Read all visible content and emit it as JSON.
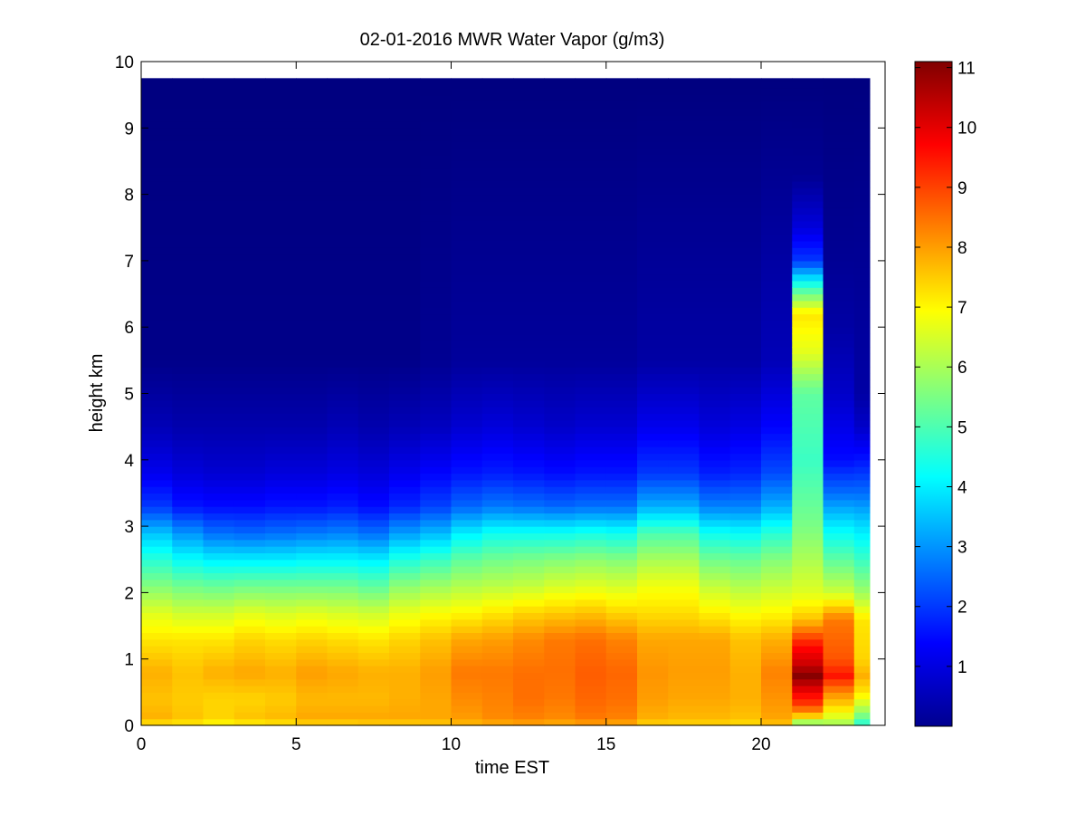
{
  "chart_data": {
    "type": "heatmap",
    "title": "02-01-2016 MWR Water Vapor (g/m3)",
    "xlabel": "time EST",
    "ylabel": "height km",
    "xlim": [
      0,
      24
    ],
    "ylim": [
      0,
      10
    ],
    "x_ticks": [
      "0",
      "5",
      "10",
      "15",
      "20"
    ],
    "y_ticks": [
      "0",
      "1",
      "2",
      "3",
      "4",
      "5",
      "6",
      "7",
      "8",
      "9",
      "10"
    ],
    "grid": false,
    "colormap": "jet",
    "colorbar": {
      "range": [
        0,
        11.1
      ],
      "ticks": [
        "1",
        "2",
        "3",
        "4",
        "5",
        "6",
        "7",
        "8",
        "9",
        "10",
        "11"
      ]
    },
    "x_centers": [
      0.5,
      1.5,
      2.5,
      3.5,
      4.5,
      5.5,
      6.5,
      7.5,
      8.5,
      9.5,
      10.5,
      11.5,
      12.5,
      13.5,
      14.5,
      15.5,
      16.5,
      17.5,
      18.5,
      19.5,
      20.5,
      21.5,
      22.5,
      23.5
    ],
    "z_profiles": [
      {
        "h": [
          0,
          0.1,
          0.4,
          0.8,
          1.3,
          1.7,
          2.1,
          2.5,
          2.9,
          3.3,
          3.8,
          4.5,
          5.5,
          9.75
        ],
        "v": [
          7.0,
          7.8,
          7.6,
          7.8,
          7.2,
          6.6,
          5.6,
          4.6,
          3.5,
          2.0,
          1.2,
          0.6,
          0.1,
          0.0
        ]
      },
      {
        "h": [
          0,
          0.1,
          0.4,
          0.8,
          1.3,
          1.7,
          2.1,
          2.5,
          2.9,
          3.3,
          3.8,
          4.5,
          5.5,
          9.75
        ],
        "v": [
          7.0,
          7.6,
          7.5,
          7.6,
          7.2,
          6.4,
          5.4,
          4.2,
          3.0,
          1.6,
          1.0,
          0.5,
          0.1,
          0.0
        ]
      },
      {
        "h": [
          0,
          0.1,
          0.4,
          0.8,
          1.3,
          1.7,
          2.1,
          2.5,
          2.9,
          3.3,
          3.8,
          4.5,
          5.5,
          9.75
        ],
        "v": [
          6.8,
          7.4,
          7.4,
          7.8,
          7.2,
          6.4,
          5.3,
          4.0,
          2.6,
          1.5,
          0.9,
          0.5,
          0.1,
          0.0
        ]
      },
      {
        "h": [
          0,
          0.1,
          0.4,
          0.8,
          1.3,
          1.7,
          2.1,
          2.5,
          2.9,
          3.3,
          3.8,
          4.5,
          5.5,
          9.75
        ],
        "v": [
          6.9,
          7.6,
          7.4,
          7.9,
          7.4,
          6.6,
          5.4,
          4.0,
          2.5,
          1.5,
          0.9,
          0.5,
          0.1,
          0.0
        ]
      },
      {
        "h": [
          0,
          0.1,
          0.4,
          0.8,
          1.3,
          1.7,
          2.1,
          2.5,
          2.9,
          3.3,
          3.8,
          4.5,
          5.5,
          9.75
        ],
        "v": [
          7.0,
          7.7,
          7.5,
          7.8,
          7.3,
          6.5,
          5.4,
          4.0,
          2.6,
          1.6,
          1.0,
          0.5,
          0.1,
          0.0
        ]
      },
      {
        "h": [
          0,
          0.1,
          0.4,
          0.8,
          1.3,
          1.7,
          2.1,
          2.5,
          2.9,
          3.3,
          3.8,
          4.5,
          5.5,
          9.75
        ],
        "v": [
          7.2,
          7.9,
          7.7,
          8.0,
          7.4,
          6.6,
          5.4,
          4.1,
          2.7,
          1.6,
          1.0,
          0.5,
          0.1,
          0.0
        ]
      },
      {
        "h": [
          0,
          0.1,
          0.4,
          0.8,
          1.3,
          1.7,
          2.1,
          2.5,
          2.9,
          3.3,
          3.8,
          4.5,
          5.5,
          9.75
        ],
        "v": [
          7.2,
          7.9,
          7.7,
          7.9,
          7.3,
          6.5,
          5.4,
          4.1,
          2.8,
          1.7,
          1.1,
          0.6,
          0.1,
          0.0
        ]
      },
      {
        "h": [
          0,
          0.1,
          0.4,
          0.8,
          1.3,
          1.7,
          2.1,
          2.5,
          2.9,
          3.3,
          3.8,
          4.5,
          5.5,
          9.75
        ],
        "v": [
          7.3,
          7.9,
          7.7,
          7.8,
          7.2,
          6.4,
          5.2,
          4.0,
          2.6,
          1.5,
          1.0,
          0.5,
          0.1,
          0.0
        ]
      },
      {
        "h": [
          0,
          0.1,
          0.4,
          0.8,
          1.3,
          1.7,
          2.1,
          2.5,
          2.9,
          3.3,
          3.8,
          4.5,
          5.5,
          9.75
        ],
        "v": [
          7.3,
          7.9,
          7.8,
          7.8,
          7.4,
          6.7,
          5.7,
          4.5,
          3.1,
          1.8,
          1.2,
          0.6,
          0.1,
          0.0
        ]
      },
      {
        "h": [
          0,
          0.1,
          0.4,
          0.8,
          1.3,
          1.7,
          2.1,
          2.5,
          2.9,
          3.3,
          3.8,
          4.5,
          5.5,
          9.75
        ],
        "v": [
          7.4,
          7.9,
          7.9,
          8.0,
          7.6,
          6.9,
          5.9,
          4.8,
          3.4,
          2.1,
          1.4,
          0.7,
          0.2,
          0.0
        ]
      },
      {
        "h": [
          0,
          0.1,
          0.4,
          0.8,
          1.3,
          1.7,
          2.1,
          2.5,
          2.9,
          3.3,
          3.8,
          4.5,
          5.5,
          9.75
        ],
        "v": [
          7.6,
          8.0,
          8.2,
          8.4,
          7.9,
          7.0,
          6.1,
          5.2,
          4.0,
          2.5,
          1.6,
          0.9,
          0.3,
          0.0
        ]
      },
      {
        "h": [
          0,
          0.1,
          0.4,
          0.8,
          1.3,
          1.7,
          2.1,
          2.5,
          2.9,
          3.3,
          3.8,
          4.5,
          5.5,
          9.75
        ],
        "v": [
          7.7,
          8.2,
          8.3,
          8.4,
          8.0,
          7.2,
          6.2,
          5.4,
          4.3,
          2.7,
          1.7,
          1.0,
          0.3,
          0.0
        ]
      },
      {
        "h": [
          0,
          0.1,
          0.4,
          0.8,
          1.3,
          1.7,
          2.1,
          2.5,
          2.9,
          3.3,
          3.8,
          4.5,
          5.5,
          9.75
        ],
        "v": [
          7.8,
          8.3,
          8.5,
          8.5,
          8.2,
          7.4,
          6.3,
          5.5,
          4.3,
          2.6,
          1.6,
          0.9,
          0.3,
          0.0
        ]
      },
      {
        "h": [
          0,
          0.1,
          0.4,
          0.8,
          1.3,
          1.7,
          2.1,
          2.5,
          2.9,
          3.3,
          3.8,
          4.5,
          5.5,
          9.75
        ],
        "v": [
          7.7,
          8.2,
          8.4,
          8.5,
          8.4,
          7.5,
          6.5,
          5.6,
          4.3,
          2.5,
          1.5,
          0.8,
          0.3,
          0.0
        ]
      },
      {
        "h": [
          0,
          0.1,
          0.4,
          0.8,
          1.3,
          1.7,
          2.1,
          2.5,
          2.9,
          3.3,
          3.8,
          4.5,
          5.5,
          9.75
        ],
        "v": [
          7.8,
          8.4,
          8.6,
          8.7,
          8.5,
          7.6,
          6.6,
          5.7,
          4.4,
          2.6,
          1.6,
          0.9,
          0.3,
          0.0
        ]
      },
      {
        "h": [
          0,
          0.1,
          0.4,
          0.8,
          1.3,
          1.7,
          2.1,
          2.5,
          2.9,
          3.3,
          3.8,
          4.5,
          5.5,
          9.75
        ],
        "v": [
          7.7,
          8.3,
          8.5,
          8.6,
          8.3,
          7.4,
          6.5,
          5.6,
          4.3,
          2.6,
          1.6,
          0.9,
          0.3,
          0.0
        ]
      },
      {
        "h": [
          0,
          0.1,
          0.4,
          0.8,
          1.3,
          1.7,
          2.1,
          2.5,
          2.9,
          3.3,
          3.8,
          4.5,
          5.5,
          9.75
        ],
        "v": [
          7.3,
          7.8,
          8.0,
          8.1,
          7.9,
          7.3,
          6.8,
          6.0,
          5.0,
          3.3,
          2.0,
          1.2,
          0.4,
          0.0
        ]
      },
      {
        "h": [
          0,
          0.1,
          0.4,
          0.8,
          1.3,
          1.7,
          2.1,
          2.5,
          2.9,
          3.3,
          3.8,
          4.5,
          5.5,
          9.75
        ],
        "v": [
          7.3,
          7.7,
          7.9,
          8.0,
          7.9,
          7.3,
          6.8,
          6.0,
          5.0,
          3.3,
          2.0,
          1.2,
          0.4,
          0.0
        ]
      },
      {
        "h": [
          0,
          0.1,
          0.4,
          0.8,
          1.3,
          1.7,
          2.1,
          2.5,
          2.9,
          3.3,
          3.8,
          4.5,
          5.5,
          9.75
        ],
        "v": [
          7.3,
          7.7,
          7.9,
          8.0,
          7.9,
          7.1,
          6.3,
          5.4,
          4.3,
          2.8,
          1.7,
          1.0,
          0.4,
          0.0
        ]
      },
      {
        "h": [
          0,
          0.1,
          0.4,
          0.8,
          1.3,
          1.7,
          2.1,
          2.5,
          2.9,
          3.3,
          3.8,
          4.5,
          5.5,
          9.75
        ],
        "v": [
          7.2,
          7.6,
          7.8,
          7.8,
          7.6,
          6.9,
          6.1,
          5.3,
          4.2,
          2.8,
          1.8,
          1.1,
          0.4,
          0.0
        ]
      },
      {
        "h": [
          0,
          0.1,
          0.4,
          0.8,
          1.3,
          1.7,
          2.1,
          2.5,
          2.9,
          3.3,
          3.8,
          4.5,
          5.5,
          9.75
        ],
        "v": [
          7.5,
          7.9,
          8.1,
          8.3,
          7.8,
          7.0,
          6.3,
          5.6,
          4.6,
          3.3,
          2.2,
          1.4,
          0.6,
          0.0
        ]
      },
      {
        "h": [
          0,
          0.1,
          0.3,
          0.5,
          0.75,
          0.95,
          1.2,
          1.6,
          2.0,
          3.0,
          4.0,
          5.0,
          5.6,
          6.2,
          6.6,
          7.0,
          7.5,
          8.3,
          9.75
        ],
        "v": [
          5.0,
          7.0,
          9.0,
          9.8,
          11.0,
          10.2,
          9.6,
          7.6,
          6.6,
          5.5,
          4.8,
          5.2,
          6.6,
          7.2,
          4.8,
          2.0,
          1.0,
          0.2,
          0.0
        ]
      },
      {
        "h": [
          0,
          0.1,
          0.3,
          0.5,
          0.75,
          1.0,
          1.3,
          1.6,
          2.0,
          2.5,
          3.0,
          3.5,
          4.0,
          5.0,
          6.0,
          7.2,
          9.75
        ],
        "v": [
          5.8,
          6.4,
          7.4,
          8.2,
          9.5,
          8.8,
          8.6,
          8.4,
          6.4,
          5.2,
          4.0,
          2.6,
          1.5,
          0.8,
          0.4,
          0.2,
          0.0
        ]
      },
      {
        "h": [
          0,
          0.1,
          0.3,
          0.5,
          0.75,
          1.0,
          1.3,
          1.6,
          2.0,
          2.5,
          3.0,
          3.5,
          4.0,
          4.5,
          5.0,
          9.75
        ],
        "v": [
          4.4,
          5.2,
          6.3,
          7.2,
          7.8,
          7.4,
          7.3,
          7.2,
          5.9,
          4.8,
          3.8,
          2.6,
          1.6,
          0.8,
          0.4,
          0.0
        ]
      }
    ]
  }
}
